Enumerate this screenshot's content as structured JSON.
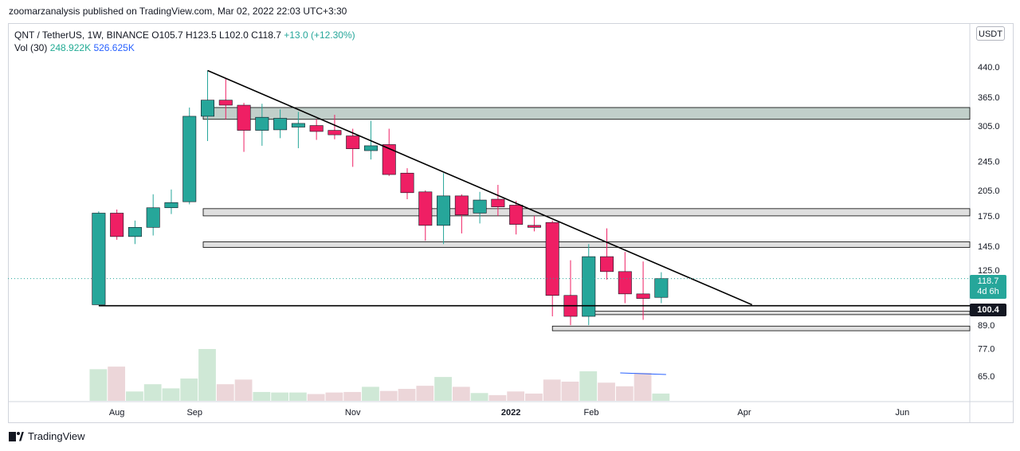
{
  "header": {
    "published_note": "zoomarzanalysis published on TradingView.com, Mar 02, 2022 22:03 UTC+3:30"
  },
  "legend": {
    "symbol": "QNT / TetherUS, 1W, BINANCE",
    "open": "O105.7",
    "high": "H123.5",
    "low": "L102.0",
    "close": "C118.7",
    "change": "+13.0 (+12.30%)",
    "vol_label": "Vol (30)",
    "vol_value1": "248.922K",
    "vol_value2": "526.625K"
  },
  "price_axis": {
    "unit": "USDT",
    "current_price": "118.7",
    "countdown": "4d 6h",
    "level_label": "100.4"
  },
  "footer": {
    "brand": "TradingView"
  },
  "colors": {
    "up": "#26a69a",
    "down": "#ef1f64",
    "vol_up": "#cfe8d6",
    "vol_down": "#ecd6d9",
    "zone": "#d9d9d9",
    "zone_green": "#b6c7c1"
  },
  "chart_data": {
    "type": "candlestick",
    "scale": "log",
    "ylim": [
      58,
      490
    ],
    "xlim": [
      "2021-06-21",
      "2022-06-27"
    ],
    "y_ticks": [
      440,
      365,
      305,
      245,
      205,
      175,
      145,
      125,
      89,
      77,
      65
    ],
    "y_tick_labels": [
      "440.0",
      "365.0",
      "305.0",
      "245.0",
      "205.0",
      "175.0",
      "145.0",
      "125.0",
      "89.0",
      "77.0",
      "65.0"
    ],
    "x_ticks": [
      {
        "label": "Aug",
        "date": "2021-08-02"
      },
      {
        "label": "Sep",
        "date": "2021-09-01"
      },
      {
        "label": "Nov",
        "date": "2021-11-01"
      },
      {
        "label": "2022",
        "date": "2022-01-01"
      },
      {
        "label": "Feb",
        "date": "2022-02-01"
      },
      {
        "label": "Apr",
        "date": "2022-04-01"
      },
      {
        "label": "Jun",
        "date": "2022-06-01"
      }
    ],
    "candles": [
      {
        "date": "2021-07-26",
        "o": 101,
        "h": 180,
        "l": 101,
        "c": 178,
        "v": 0.61
      },
      {
        "date": "2021-08-02",
        "o": 178,
        "h": 182,
        "l": 151,
        "c": 154,
        "v": 0.66
      },
      {
        "date": "2021-08-09",
        "o": 154,
        "h": 170,
        "l": 147,
        "c": 163,
        "v": 0.18
      },
      {
        "date": "2021-08-16",
        "o": 163,
        "h": 200,
        "l": 155,
        "c": 184,
        "v": 0.32
      },
      {
        "date": "2021-08-23",
        "o": 184,
        "h": 206,
        "l": 177,
        "c": 190,
        "v": 0.24
      },
      {
        "date": "2021-08-30",
        "o": 191,
        "h": 342,
        "l": 188,
        "c": 324,
        "v": 0.43
      },
      {
        "date": "2021-09-06",
        "o": 324,
        "h": 430,
        "l": 278,
        "c": 358,
        "v": 1.0
      },
      {
        "date": "2021-09-13",
        "o": 358,
        "h": 410,
        "l": 318,
        "c": 347,
        "v": 0.32
      },
      {
        "date": "2021-09-20",
        "o": 347,
        "h": 352,
        "l": 260,
        "c": 297,
        "v": 0.41
      },
      {
        "date": "2021-09-27",
        "o": 297,
        "h": 350,
        "l": 270,
        "c": 322,
        "v": 0.17
      },
      {
        "date": "2021-10-04",
        "o": 298,
        "h": 338,
        "l": 283,
        "c": 320,
        "v": 0.16
      },
      {
        "date": "2021-10-11",
        "o": 303,
        "h": 333,
        "l": 266,
        "c": 310,
        "v": 0.16
      },
      {
        "date": "2021-10-18",
        "o": 306,
        "h": 318,
        "l": 280,
        "c": 295,
        "v": 0.13
      },
      {
        "date": "2021-10-25",
        "o": 297,
        "h": 327,
        "l": 281,
        "c": 289,
        "v": 0.16
      },
      {
        "date": "2021-11-01",
        "o": 287,
        "h": 300,
        "l": 237,
        "c": 265,
        "v": 0.17
      },
      {
        "date": "2021-11-08",
        "o": 262,
        "h": 315,
        "l": 248,
        "c": 270,
        "v": 0.27
      },
      {
        "date": "2021-11-15",
        "o": 272,
        "h": 300,
        "l": 224,
        "c": 226,
        "v": 0.19
      },
      {
        "date": "2021-11-22",
        "o": 228,
        "h": 235,
        "l": 194,
        "c": 202,
        "v": 0.23
      },
      {
        "date": "2021-11-29",
        "o": 203,
        "h": 205,
        "l": 150,
        "c": 165,
        "v": 0.29
      },
      {
        "date": "2021-12-06",
        "o": 165,
        "h": 228,
        "l": 147,
        "c": 198,
        "v": 0.46
      },
      {
        "date": "2021-12-13",
        "o": 198,
        "h": 200,
        "l": 157,
        "c": 176,
        "v": 0.27
      },
      {
        "date": "2021-12-20",
        "o": 178,
        "h": 203,
        "l": 167,
        "c": 193,
        "v": 0.15
      },
      {
        "date": "2021-12-27",
        "o": 194,
        "h": 212,
        "l": 175,
        "c": 185,
        "v": 0.11
      },
      {
        "date": "2022-01-03",
        "o": 187,
        "h": 192,
        "l": 156,
        "c": 166,
        "v": 0.18
      },
      {
        "date": "2022-01-10",
        "o": 165,
        "h": 175,
        "l": 159,
        "c": 163,
        "v": 0.14
      },
      {
        "date": "2022-01-17",
        "o": 168,
        "h": 170,
        "l": 94,
        "c": 107,
        "v": 0.41
      },
      {
        "date": "2022-01-24",
        "o": 107,
        "h": 133,
        "l": 89,
        "c": 94,
        "v": 0.37
      },
      {
        "date": "2022-01-31",
        "o": 94,
        "h": 147,
        "l": 89,
        "c": 136,
        "v": 0.57
      },
      {
        "date": "2022-02-07",
        "o": 136,
        "h": 162,
        "l": 118,
        "c": 124,
        "v": 0.35
      },
      {
        "date": "2022-02-14",
        "o": 124,
        "h": 140,
        "l": 102,
        "c": 108,
        "v": 0.28
      },
      {
        "date": "2022-02-21",
        "o": 108,
        "h": 132,
        "l": 92,
        "c": 105,
        "v": 0.54
      },
      {
        "date": "2022-02-28",
        "o": 105.7,
        "h": 123.5,
        "l": 102,
        "c": 118.7,
        "v": 0.14
      }
    ]
  }
}
